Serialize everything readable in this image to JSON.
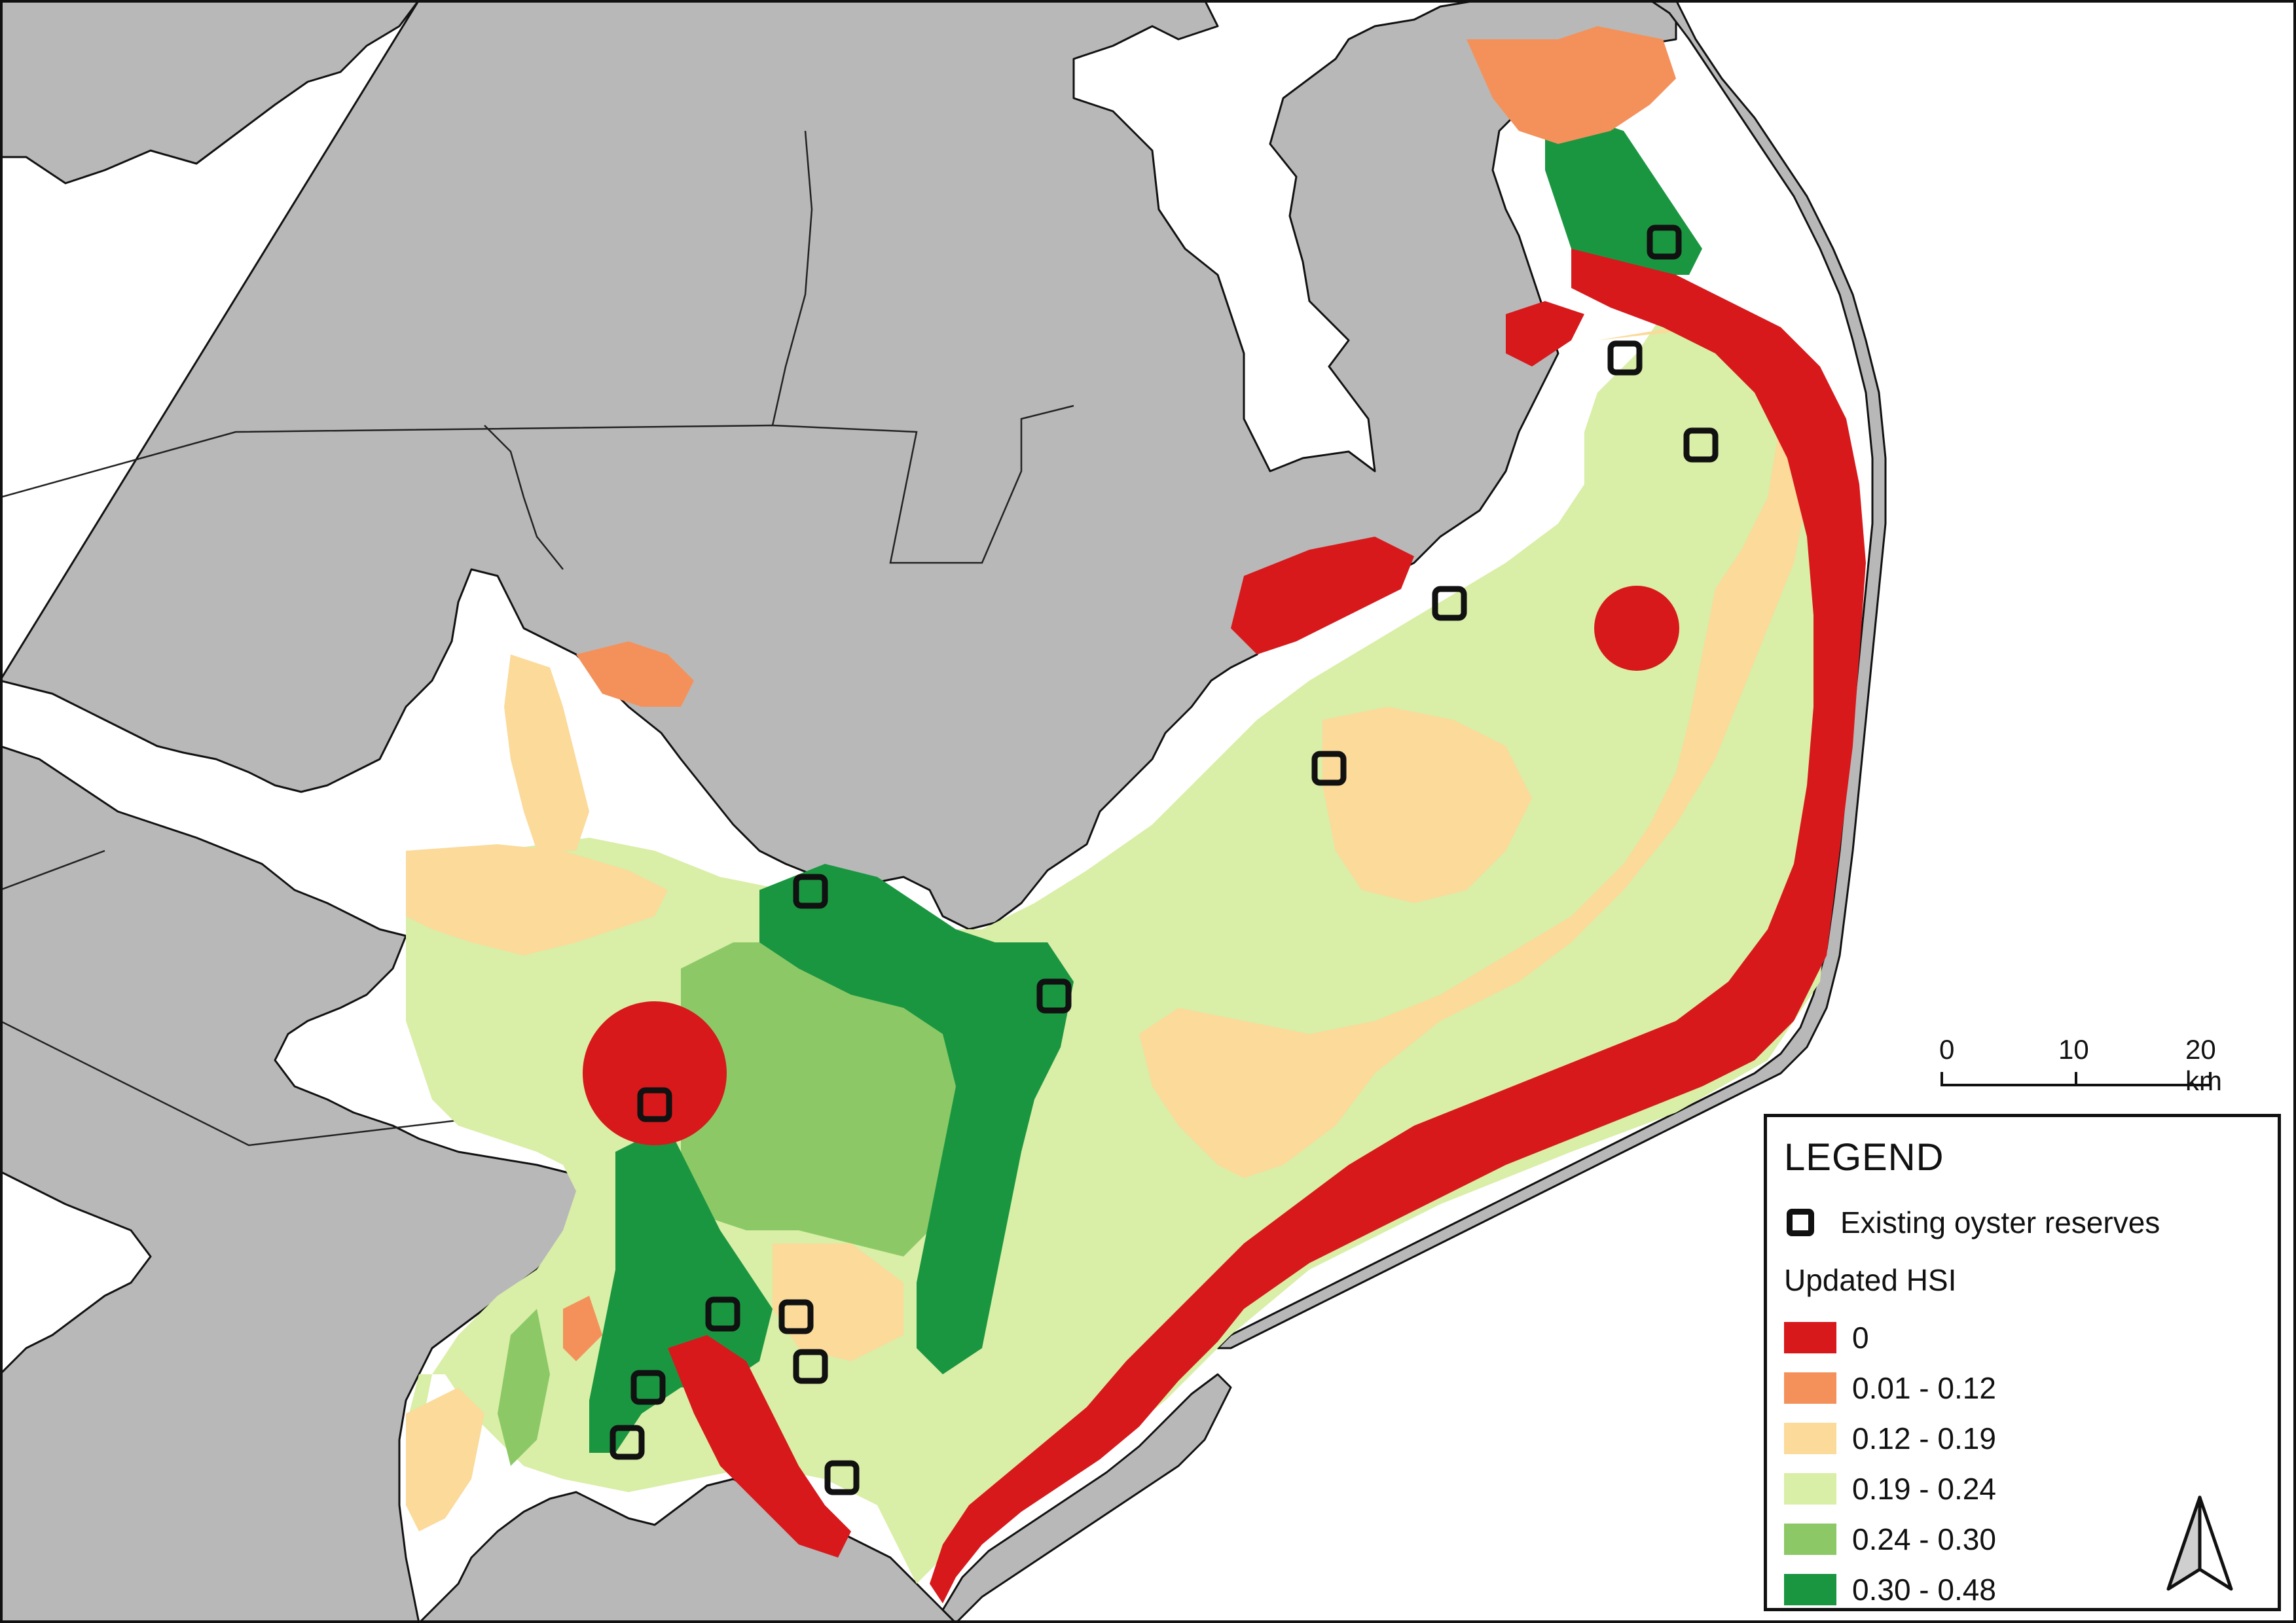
{
  "legend": {
    "title": "LEGEND",
    "reserves_label": "Existing oyster reserves",
    "hsi_title": "Updated HSI",
    "classes": [
      {
        "label": "0",
        "color": "#d7191c"
      },
      {
        "label": "0.01 - 0.12",
        "color": "#f4915a"
      },
      {
        "label": "0.12 - 0.19",
        "color": "#fbda9a"
      },
      {
        "label": "0.19 - 0.24",
        "color": "#d9eea6"
      },
      {
        "label": "0.24 - 0.30",
        "color": "#8cc966"
      },
      {
        "label": "0.30 - 0.48",
        "color": "#1a9641"
      }
    ]
  },
  "scale_bar": {
    "labels": [
      "0",
      "10",
      "20 km"
    ]
  },
  "colors": {
    "land": "#b8b8b8",
    "water": "#ffffff",
    "outline": "#111111"
  },
  "icons": {
    "north_arrow": "north-arrow-icon",
    "reserve_marker": "square-outline-icon"
  }
}
